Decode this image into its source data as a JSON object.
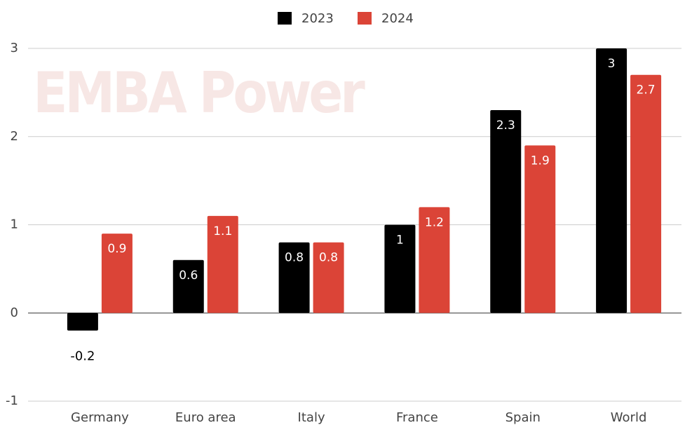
{
  "chart_data": {
    "type": "bar",
    "watermark": "EMBA Power",
    "categories": [
      "Germany",
      "Euro area",
      "Italy",
      "France",
      "Spain",
      "World"
    ],
    "series": [
      {
        "name": "2023",
        "color": "#000000",
        "values": [
          -0.2,
          0.6,
          0.8,
          1,
          2.3,
          3
        ]
      },
      {
        "name": "2024",
        "color": "#db4437",
        "values": [
          0.9,
          1.1,
          0.8,
          1.2,
          1.9,
          2.7
        ]
      }
    ],
    "ylim": [
      -1,
      3
    ],
    "yticks": [
      -1,
      0,
      1,
      2,
      3
    ],
    "grid": true,
    "legend": "top"
  }
}
